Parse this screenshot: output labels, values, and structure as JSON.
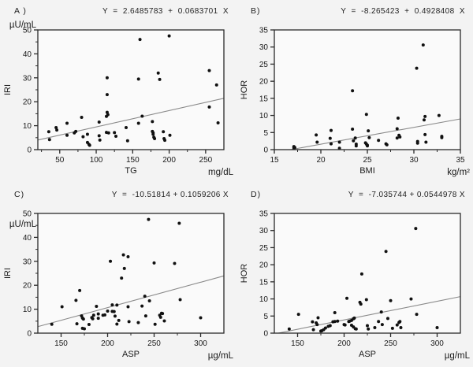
{
  "figure": {
    "background_color": "#f3f3f3",
    "plot_background_color": "#fafafa",
    "axis_color": "#2b2b2b",
    "point_color": "#111111",
    "regression_line_color": "#8a8a8a"
  },
  "chart_data": [
    {
      "id": "A",
      "panel_label": "A )",
      "type": "scatter",
      "equation_text": "Y  =  2.6485783  +  0.0683701  X",
      "regression": {
        "intercept": 2.6485783,
        "slope": 0.0683701
      },
      "xlabel": "TG",
      "x_unit": "mg/dL",
      "ylabel": "IRI",
      "y_unit": "µU/mL",
      "y_unit_position": "above",
      "xlim": [
        20,
        275
      ],
      "ylim": [
        0,
        50
      ],
      "xticks": [
        50,
        100,
        150,
        200,
        250
      ],
      "yticks": [
        0,
        10,
        20,
        30,
        40,
        50
      ],
      "x_minor_ticks": [
        25,
        75,
        125,
        175,
        225
      ],
      "y_minor_ticks": [
        5,
        15,
        25,
        35,
        45
      ],
      "grid": false,
      "legend": false,
      "points": [
        [
          35,
          7.5
        ],
        [
          36,
          4.2
        ],
        [
          45,
          9.2
        ],
        [
          46,
          8.2
        ],
        [
          60,
          11
        ],
        [
          60,
          6
        ],
        [
          70,
          7
        ],
        [
          72,
          7.6
        ],
        [
          80,
          13.5
        ],
        [
          82,
          5.4
        ],
        [
          88,
          6.4
        ],
        [
          88,
          3
        ],
        [
          90,
          2.2
        ],
        [
          91,
          1.8
        ],
        [
          104,
          11.5
        ],
        [
          104,
          5.8
        ],
        [
          105,
          4
        ],
        [
          115,
          30
        ],
        [
          115,
          23
        ],
        [
          115,
          15.6
        ],
        [
          116,
          14.6
        ],
        [
          114,
          13.9
        ],
        [
          114,
          7.2
        ],
        [
          117,
          7
        ],
        [
          125,
          7.1
        ],
        [
          127,
          5.6
        ],
        [
          141,
          9.2
        ],
        [
          143,
          3.7
        ],
        [
          160,
          46
        ],
        [
          158,
          29.5
        ],
        [
          158,
          11
        ],
        [
          163,
          14
        ],
        [
          177,
          11.7
        ],
        [
          177,
          7.6
        ],
        [
          178,
          7
        ],
        [
          178,
          6.4
        ],
        [
          179,
          5.2
        ],
        [
          180,
          4.6
        ],
        [
          185,
          32
        ],
        [
          187,
          29.3
        ],
        [
          192,
          7.5
        ],
        [
          193,
          4.6
        ],
        [
          194,
          3.9
        ],
        [
          200,
          47.5
        ],
        [
          201,
          6
        ],
        [
          255,
          33
        ],
        [
          255,
          17.8
        ],
        [
          265,
          27
        ],
        [
          267,
          11.2
        ]
      ]
    },
    {
      "id": "B",
      "panel_label": "B)",
      "type": "scatter",
      "equation_text": "Y  =  -8.265423  +  0.4928408  X",
      "regression": {
        "intercept": -8.265423,
        "slope": 0.4928408
      },
      "xlabel": "BMI",
      "x_unit": "kg/m²",
      "ylabel": "HOR",
      "y_unit": "",
      "y_unit_position": "above",
      "xlim": [
        15,
        35
      ],
      "ylim": [
        0,
        35
      ],
      "xticks": [
        15,
        20,
        25,
        30,
        35
      ],
      "yticks": [
        0,
        5,
        10,
        15,
        20,
        25,
        30,
        35
      ],
      "x_minor_ticks": [
        17.5,
        22.5,
        27.5,
        32.5
      ],
      "y_minor_ticks": [],
      "grid": false,
      "legend": false,
      "points": [
        [
          17.1,
          0.9
        ],
        [
          17.1,
          0.5
        ],
        [
          17.2,
          0.6
        ],
        [
          19.5,
          4.3
        ],
        [
          19.6,
          2.2
        ],
        [
          21,
          3.3
        ],
        [
          21.1,
          5.6
        ],
        [
          21.1,
          1.7
        ],
        [
          22,
          2.2
        ],
        [
          22,
          0.4
        ],
        [
          23.4,
          17.2
        ],
        [
          23.4,
          6
        ],
        [
          23.5,
          2.6
        ],
        [
          23.7,
          3.4
        ],
        [
          23.8,
          1.6
        ],
        [
          23.8,
          1.1
        ],
        [
          24.9,
          10.3
        ],
        [
          24.8,
          2
        ],
        [
          24.9,
          1.6
        ],
        [
          25,
          1.3
        ],
        [
          25,
          1.1
        ],
        [
          25.1,
          5.5
        ],
        [
          25.2,
          3.5
        ],
        [
          26.2,
          2.7
        ],
        [
          27,
          1.7
        ],
        [
          27.1,
          1.4
        ],
        [
          28.2,
          6.1
        ],
        [
          28.2,
          3.4
        ],
        [
          28.3,
          9.2
        ],
        [
          28.4,
          4.2
        ],
        [
          28.5,
          3.7
        ],
        [
          30.3,
          23.8
        ],
        [
          30.4,
          2.4
        ],
        [
          30.4,
          1.9
        ],
        [
          31,
          30.6
        ],
        [
          31.1,
          8.7
        ],
        [
          31.2,
          9.7
        ],
        [
          31.2,
          4.4
        ],
        [
          31.3,
          2.2
        ],
        [
          32.7,
          10
        ],
        [
          33,
          3.9
        ],
        [
          33,
          3.5
        ]
      ]
    },
    {
      "id": "C",
      "panel_label": "C)",
      "type": "scatter",
      "equation_text": "Y  =  -10.51814 + 0.1059206 X",
      "regression": {
        "intercept": -10.51814,
        "slope": 0.1059206
      },
      "xlabel": "ASP",
      "x_unit": "µg/mL",
      "ylabel": "IRI",
      "y_unit": "µU/mL",
      "y_unit_position": "below",
      "xlim": [
        125,
        325
      ],
      "ylim": [
        0,
        50
      ],
      "xticks": [
        150,
        200,
        250,
        300
      ],
      "yticks": [
        0,
        10,
        20,
        30,
        40,
        50
      ],
      "x_minor_ticks": [
        175,
        225,
        275
      ],
      "y_minor_ticks": [
        5,
        15,
        25,
        35,
        45
      ],
      "grid": false,
      "legend": false,
      "points": [
        [
          140,
          3.7
        ],
        [
          151,
          11
        ],
        [
          166,
          13.7
        ],
        [
          167,
          3.9
        ],
        [
          170,
          17.8
        ],
        [
          172,
          7.2
        ],
        [
          173,
          6.3
        ],
        [
          174,
          5.9
        ],
        [
          173,
          2
        ],
        [
          175,
          1.8
        ],
        [
          180,
          3.6
        ],
        [
          183,
          6.5
        ],
        [
          184,
          6
        ],
        [
          185,
          7.5
        ],
        [
          188,
          11.2
        ],
        [
          190,
          8
        ],
        [
          190,
          6.2
        ],
        [
          195,
          7.5
        ],
        [
          197,
          7.6
        ],
        [
          200,
          9.2
        ],
        [
          203,
          30
        ],
        [
          205,
          11.8
        ],
        [
          205,
          9.1
        ],
        [
          207,
          9
        ],
        [
          208,
          7.1
        ],
        [
          210,
          11.7
        ],
        [
          210,
          3.8
        ],
        [
          212,
          5.3
        ],
        [
          215,
          23
        ],
        [
          217,
          32.7
        ],
        [
          218,
          27
        ],
        [
          222,
          31.9
        ],
        [
          222,
          11
        ],
        [
          223,
          4.8
        ],
        [
          233,
          4.4
        ],
        [
          237,
          11.3
        ],
        [
          240,
          15.4
        ],
        [
          241,
          7.2
        ],
        [
          244,
          47.5
        ],
        [
          245,
          13.5
        ],
        [
          250,
          29.3
        ],
        [
          251,
          3.7
        ],
        [
          256,
          7.5
        ],
        [
          257,
          6.6
        ],
        [
          258,
          8.3
        ],
        [
          259,
          8.2
        ],
        [
          261,
          5.1
        ],
        [
          272,
          29.1
        ],
        [
          277,
          45.9
        ],
        [
          278,
          14
        ],
        [
          300,
          6.4
        ]
      ]
    },
    {
      "id": "D",
      "panel_label": "D)",
      "type": "scatter",
      "equation_text": "Y  =  -7.035744 + 0.0544978 X",
      "regression": {
        "intercept": -7.035744,
        "slope": 0.0544978
      },
      "xlabel": "ASP",
      "x_unit": "µg/mL",
      "ylabel": "HOR",
      "y_unit": "",
      "y_unit_position": "above",
      "xlim": [
        125,
        325
      ],
      "ylim": [
        0,
        35
      ],
      "xticks": [
        150,
        200,
        250,
        300
      ],
      "yticks": [
        0,
        5,
        10,
        15,
        20,
        25,
        30,
        35
      ],
      "x_minor_ticks": [
        175,
        225,
        275
      ],
      "y_minor_ticks": [],
      "grid": false,
      "legend": false,
      "points": [
        [
          141,
          1.2
        ],
        [
          151,
          5.5
        ],
        [
          166,
          3.3
        ],
        [
          167,
          1
        ],
        [
          170,
          3
        ],
        [
          171,
          2.5
        ],
        [
          172,
          4.5
        ],
        [
          175,
          0.6
        ],
        [
          176,
          0.7
        ],
        [
          178,
          1
        ],
        [
          180,
          1.5
        ],
        [
          183,
          2
        ],
        [
          185,
          2.2
        ],
        [
          188,
          3.3
        ],
        [
          190,
          6
        ],
        [
          190,
          3.4
        ],
        [
          193,
          3.5
        ],
        [
          200,
          2.5
        ],
        [
          201,
          2.4
        ],
        [
          203,
          10.2
        ],
        [
          205,
          3.4
        ],
        [
          206,
          3.5
        ],
        [
          208,
          3.7
        ],
        [
          208,
          2.3
        ],
        [
          210,
          4.2
        ],
        [
          210,
          1.8
        ],
        [
          211,
          4.4
        ],
        [
          212,
          1.3
        ],
        [
          213,
          1.2
        ],
        [
          217,
          9
        ],
        [
          218,
          8.5
        ],
        [
          219,
          17.3
        ],
        [
          224,
          9.8
        ],
        [
          225,
          2.2
        ],
        [
          226,
          1.2
        ],
        [
          233,
          1.6
        ],
        [
          237,
          3.4
        ],
        [
          240,
          6.2
        ],
        [
          241,
          2.5
        ],
        [
          245,
          23.9
        ],
        [
          247,
          4.3
        ],
        [
          250,
          9.5
        ],
        [
          252,
          1.4
        ],
        [
          257,
          2.4
        ],
        [
          259,
          3.1
        ],
        [
          260,
          3.4
        ],
        [
          261,
          1.6
        ],
        [
          272,
          10
        ],
        [
          277,
          30.6
        ],
        [
          278,
          5.5
        ],
        [
          300,
          1.6
        ]
      ]
    }
  ]
}
